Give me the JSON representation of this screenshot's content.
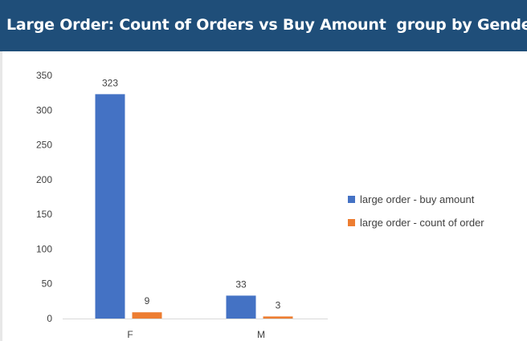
{
  "header": {
    "title": "Large Order: Count of Orders vs Buy Amount  group by Gender"
  },
  "chart_data": {
    "type": "bar",
    "title": "Large Order: Count of Orders vs Buy Amount  group by Gender",
    "categories": [
      "F",
      "M"
    ],
    "series": [
      {
        "name": "large order - buy amount",
        "values": [
          323,
          33
        ],
        "color": "#4472c4"
      },
      {
        "name": "large order - count of order",
        "values": [
          9,
          3
        ],
        "color": "#ed7d31"
      }
    ],
    "ylim": [
      0,
      350
    ],
    "yticks": [
      0,
      50,
      100,
      150,
      200,
      250,
      300,
      350
    ],
    "xlabel": "",
    "ylabel": "",
    "grid": false,
    "legend_position": "right"
  }
}
